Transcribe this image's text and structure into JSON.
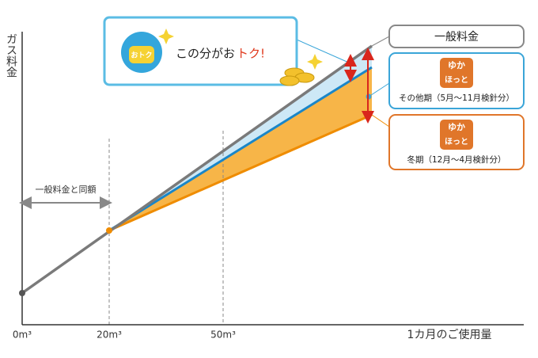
{
  "y_axis_label": "ガス料金",
  "x_axis": {
    "labels": [
      "0m³",
      "20m³",
      "50m³"
    ],
    "title": "1カ月のご使用量"
  },
  "range_label": "一般料金と同額",
  "callout": {
    "icon_label": "おトク",
    "text": "この分がお",
    "highlight": "トク!"
  },
  "legend": [
    {
      "label": "一般料金"
    },
    {
      "logo_top": "ゆか",
      "logo_bottom": "ほっと",
      "label": "その他期（5月～11月検針分）"
    },
    {
      "logo_top": "ゆか",
      "logo_bottom": "ほっと",
      "label": "冬期（12月～4月検針分）"
    }
  ]
}
